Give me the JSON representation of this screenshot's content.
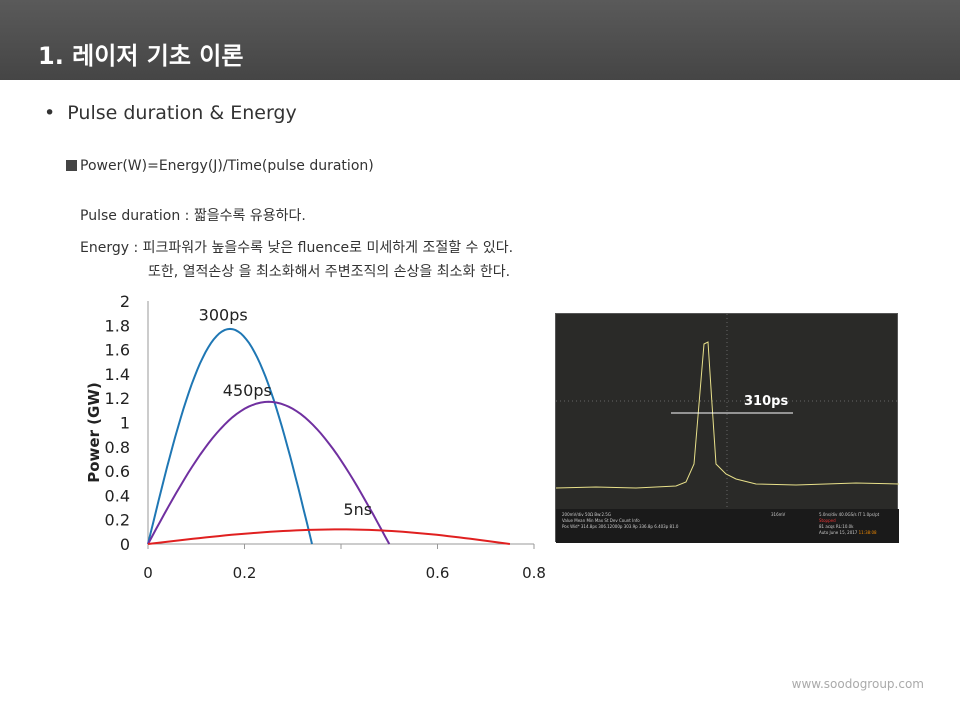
{
  "header": {
    "title": "1. 레이저 기초 이론"
  },
  "bullet": "Pulse duration & Energy",
  "formula": "Power(W)=Energy(J)/Time(pulse duration)",
  "lines": [
    "Pulse duration : 짧을수록 유용하다.",
    "Energy : 피크파워가 높을수록 낮은 fluence로 미세하게 조절할 수 있다.",
    "또한, 열적손상 을 최소화해서 주변조직의 손상을 최소화 한다."
  ],
  "chart_data": {
    "type": "line",
    "ylabel": "Power (GW)",
    "xlabel": "",
    "xlim": [
      0,
      0.8
    ],
    "ylim": [
      0,
      2
    ],
    "xticks": [
      0,
      0.2,
      0.4,
      0.6,
      0.8
    ],
    "xtick_labels": [
      "0",
      "0.2",
      "",
      "0.6",
      "0.8"
    ],
    "yticks": [
      "0",
      "0.2",
      "0.4",
      "0.6",
      "0.8",
      "1",
      "1.2",
      "1.4",
      "1.6",
      "1.8",
      "2"
    ],
    "series": [
      {
        "name": "300ps",
        "color": "#1f77b4",
        "peak_x": 0.17,
        "peak_y": 1.77,
        "end_x": 0.34
      },
      {
        "name": "450ps",
        "color": "#7030a0",
        "peak_x": 0.25,
        "peak_y": 1.17,
        "end_x": 0.5
      },
      {
        "name": "5ns",
        "color": "#e02020",
        "peak_x": 0.4,
        "peak_y": 0.12,
        "end_x": 0.75
      }
    ]
  },
  "scope": {
    "label": "310ps",
    "ch1": "200mV/div",
    "bw": "50Ω  Bw:2.5G",
    "trig": "316mV",
    "headers": [
      "Value",
      "Mean",
      "Min",
      "Max",
      "St Dev",
      "Count",
      "Info"
    ],
    "row": [
      "Pos Wid*",
      "314.8ps",
      "306.12000p",
      "303.9p",
      "336.8p",
      "6.403p",
      "81.0"
    ],
    "time": "5.0ns/div  40.0GS/s  IT  1.0ps/pt",
    "stopped": "Stopped",
    "acqs": "81 acqs",
    "rl": "RL:10.0k",
    "date": "Auto  June 15, 2017",
    "clock": "11:38:08"
  },
  "footer": "www.soodogroup.com"
}
